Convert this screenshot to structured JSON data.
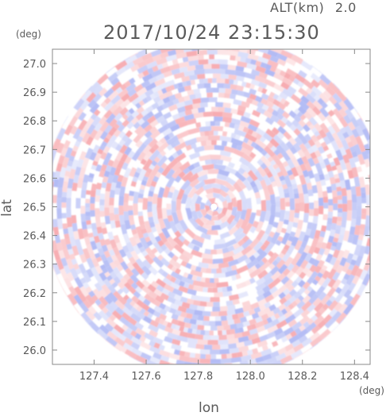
{
  "header": {
    "alt_label": "ALT(km)",
    "alt_value": "2.0",
    "timestamp": "2017/10/24 23:15:30"
  },
  "chart_data": {
    "type": "heatmap",
    "xlabel": "lon",
    "ylabel": "lat",
    "x_unit": "(deg)",
    "y_unit": "(deg)",
    "xlim": [
      127.24,
      128.46
    ],
    "ylim": [
      25.95,
      27.05
    ],
    "x_ticks": [
      "127.4",
      "127.6",
      "127.8",
      "128.0",
      "128.2",
      "128.4"
    ],
    "x_tick_values": [
      127.4,
      127.6,
      127.8,
      128.0,
      128.2,
      128.4
    ],
    "y_ticks": [
      "26.0",
      "26.1",
      "26.2",
      "26.3",
      "26.4",
      "26.5",
      "26.6",
      "26.7",
      "26.8",
      "26.9",
      "27.0"
    ],
    "y_tick_values": [
      26.0,
      26.1,
      26.2,
      26.3,
      26.4,
      26.5,
      26.6,
      26.7,
      26.8,
      26.9,
      27.0
    ],
    "center": {
      "lon": 127.86,
      "lat": 26.5
    },
    "radius_deg": 0.6,
    "colors": {
      "positive": "#f6a3a8",
      "negative": "#a8b2f3",
      "neutral": "#ffffff",
      "axis": "#777777",
      "text": "#5a5a5a"
    }
  }
}
